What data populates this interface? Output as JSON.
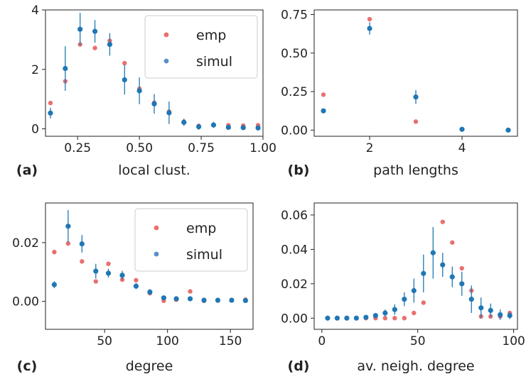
{
  "colors": {
    "emp": "#e8706f",
    "simul": "#1f77b4",
    "simul_legend": "#5a8fc6"
  },
  "chart_data": [
    {
      "panel": "(a)",
      "type": "scatter",
      "xlabel": "local clust.",
      "xlim": [
        0.12,
        1.0
      ],
      "ylim": [
        -0.25,
        4.0
      ],
      "xticks": [
        0.25,
        0.5,
        0.75,
        1.0
      ],
      "xtick_labels": [
        "0.25",
        "0.50",
        "0.75",
        "1.00"
      ],
      "yticks": [
        0,
        2,
        4
      ],
      "ytick_labels": [
        "0",
        "2",
        "4"
      ],
      "legend": {
        "position": "upper-right",
        "entries": [
          "emp",
          "simul"
        ]
      },
      "series": [
        {
          "name": "emp",
          "x": [
            0.14,
            0.2,
            0.26,
            0.32,
            0.38,
            0.44,
            0.5,
            0.56,
            0.62,
            0.68,
            0.74,
            0.8,
            0.86,
            0.92,
            0.98
          ],
          "y": [
            0.87,
            1.6,
            2.84,
            2.72,
            2.96,
            2.21,
            1.35,
            0.88,
            0.58,
            0.24,
            0.1,
            0.13,
            0.12,
            0.11,
            0.12
          ]
        },
        {
          "name": "simul",
          "x": [
            0.14,
            0.2,
            0.26,
            0.32,
            0.38,
            0.44,
            0.5,
            0.56,
            0.62,
            0.68,
            0.74,
            0.8,
            0.86,
            0.92,
            0.98
          ],
          "y": [
            0.53,
            2.03,
            3.35,
            3.28,
            2.84,
            1.65,
            1.28,
            0.84,
            0.54,
            0.22,
            0.07,
            0.13,
            0.05,
            0.04,
            0.03
          ],
          "err": [
            0.18,
            0.75,
            0.55,
            0.38,
            0.38,
            0.5,
            0.45,
            0.33,
            0.38,
            0.12,
            0.1,
            0.1,
            0.06,
            0.05,
            0.04
          ]
        }
      ]
    },
    {
      "panel": "(b)",
      "type": "scatter",
      "xlabel": "path lengths",
      "xlim": [
        0.8,
        5.2
      ],
      "ylim": [
        -0.04,
        0.78
      ],
      "xticks": [
        2,
        4
      ],
      "xtick_labels": [
        "2",
        "4"
      ],
      "yticks": [
        0.0,
        0.25,
        0.5,
        0.75
      ],
      "ytick_labels": [
        "0.00",
        "0.25",
        "0.50",
        "0.75"
      ],
      "series": [
        {
          "name": "emp",
          "x": [
            1,
            2,
            3,
            4,
            5
          ],
          "y": [
            0.23,
            0.72,
            0.055,
            0.005,
            0.0
          ]
        },
        {
          "name": "simul",
          "x": [
            1,
            2,
            3,
            4,
            5
          ],
          "y": [
            0.125,
            0.66,
            0.215,
            0.005,
            0.0
          ],
          "err": [
            0.0,
            0.04,
            0.045,
            0.005,
            0.0
          ]
        }
      ]
    },
    {
      "panel": "(c)",
      "type": "scatter",
      "xlabel": "degree",
      "xlim": [
        3,
        168
      ],
      "ylim": [
        -0.0095,
        0.0335
      ],
      "xticks": [
        50,
        100,
        150
      ],
      "xtick_labels": [
        "50",
        "100",
        "150"
      ],
      "yticks": [
        0.0,
        0.02
      ],
      "ytick_labels": [
        "0.00",
        "0.02"
      ],
      "legend": {
        "position": "upper-right",
        "entries": [
          "emp",
          "simul"
        ]
      },
      "series": [
        {
          "name": "emp",
          "x": [
            10,
            21,
            32,
            43,
            53,
            64,
            75,
            86,
            97,
            107,
            118,
            129,
            140,
            151,
            162
          ],
          "y": [
            0.0168,
            0.0197,
            0.0136,
            0.0068,
            0.0128,
            0.0074,
            0.0072,
            0.0028,
            0.0002,
            0.0006,
            0.0034,
            0.0002,
            0.0003,
            0.0004,
            0.0006
          ]
        },
        {
          "name": "simul",
          "x": [
            10,
            21,
            32,
            43,
            53,
            64,
            75,
            86,
            97,
            107,
            118,
            129,
            140,
            151,
            162
          ],
          "y": [
            0.0057,
            0.0256,
            0.0196,
            0.0103,
            0.0096,
            0.0089,
            0.0052,
            0.0032,
            0.0012,
            0.0009,
            0.0009,
            0.0004,
            0.0004,
            0.0004,
            0.0003
          ],
          "err": [
            0.0012,
            0.0055,
            0.003,
            0.0025,
            0.0015,
            0.0015,
            0.001,
            0.001,
            0.0007,
            0.0004,
            0.0004,
            0.0003,
            0.0003,
            0.0003,
            0.0003
          ]
        }
      ]
    },
    {
      "panel": "(d)",
      "type": "scatter",
      "xlabel": "av. neigh. degree",
      "xlim": [
        -4,
        102
      ],
      "ylim": [
        -0.0065,
        0.067
      ],
      "xticks": [
        0,
        50,
        100
      ],
      "xtick_labels": [
        "0",
        "50",
        "100"
      ],
      "yticks": [
        0.0,
        0.02,
        0.04,
        0.06
      ],
      "ytick_labels": [
        "0.00",
        "0.02",
        "0.04",
        "0.06"
      ],
      "series": [
        {
          "name": "emp",
          "x": [
            3,
            8,
            13,
            18,
            23,
            28,
            33,
            38,
            43,
            48,
            53,
            58,
            63,
            68,
            73,
            78,
            83,
            88,
            93,
            98
          ],
          "y": [
            0.0,
            0.0,
            0.0,
            0.0,
            0.0,
            0.0,
            0.0,
            0.0,
            0.0,
            0.003,
            0.009,
            0.038,
            0.056,
            0.044,
            0.029,
            0.016,
            0.001,
            0.001,
            0.001,
            0.003
          ]
        },
        {
          "name": "simul",
          "x": [
            3,
            8,
            13,
            18,
            23,
            28,
            33,
            38,
            43,
            48,
            53,
            58,
            63,
            68,
            73,
            78,
            83,
            88,
            93,
            98
          ],
          "y": [
            0.0,
            0.0,
            0.0,
            0.0,
            0.0005,
            0.0015,
            0.003,
            0.005,
            0.011,
            0.016,
            0.026,
            0.038,
            0.031,
            0.024,
            0.02,
            0.011,
            0.006,
            0.0045,
            0.002,
            0.0015
          ],
          "err": [
            0.0,
            0.0,
            0.0,
            0.0,
            0.0003,
            0.001,
            0.002,
            0.003,
            0.004,
            0.007,
            0.011,
            0.015,
            0.007,
            0.006,
            0.007,
            0.008,
            0.006,
            0.004,
            0.003,
            0.002
          ]
        }
      ]
    }
  ]
}
